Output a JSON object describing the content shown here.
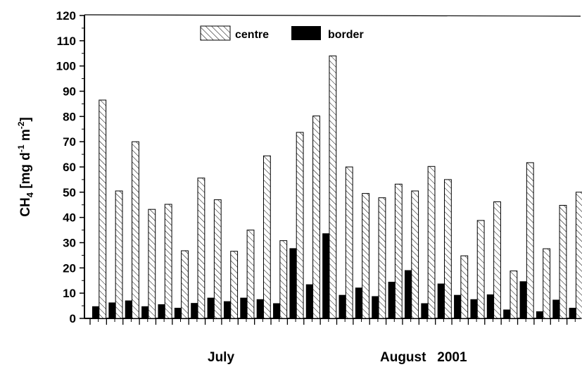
{
  "chart_data": {
    "type": "bar",
    "ylabel": {
      "main": "CH",
      "sub": "4",
      "unit_open": " [mg d",
      "exp1": "-1",
      "unit_mid": " m",
      "exp2": "-2",
      "unit_close": "]"
    },
    "xlabels": {
      "left": "July",
      "right": "August   2001"
    },
    "ylim": [
      0,
      120
    ],
    "yticks": [
      0,
      10,
      20,
      30,
      40,
      50,
      60,
      70,
      80,
      90,
      100,
      110,
      120
    ],
    "grid": false,
    "legend_position": "top-center",
    "series": [
      {
        "name": "centre",
        "pattern": "hatched",
        "values": [
          86.5,
          50.5,
          70,
          43.2,
          45.2,
          26.8,
          55.6,
          47,
          26.6,
          35,
          64.4,
          30.8,
          73.7,
          80.2,
          104,
          60,
          49.5,
          47.8,
          53.2,
          50.5,
          60.2,
          55,
          24.8,
          38.8,
          46.2,
          18.8,
          61.7,
          27.6,
          44.8,
          50
        ]
      },
      {
        "name": "border",
        "pattern": "solid",
        "values": [
          4.8,
          6.3,
          7.1,
          4.8,
          5.6,
          4.2,
          6.1,
          8.2,
          6.8,
          8.2,
          7.6,
          6,
          27.8,
          13.5,
          33.7,
          9.3,
          12.2,
          8.8,
          14.5,
          19.1,
          6,
          13.8,
          9.3,
          7.6,
          9.5,
          3.5,
          14.7,
          2.8,
          7.4,
          4.2
        ]
      }
    ],
    "colors": {
      "hatched_fill": "#ffffff",
      "hatch_stroke": "#000000",
      "solid_fill": "#000000",
      "axis": "#000000"
    }
  }
}
